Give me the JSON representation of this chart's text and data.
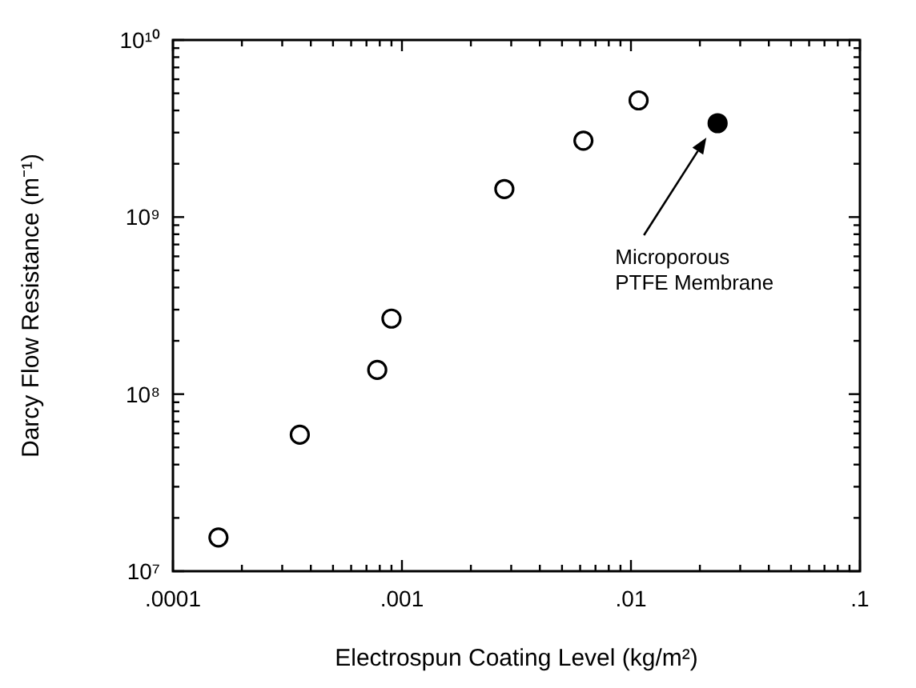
{
  "chart_data": {
    "type": "scatter",
    "xlabel": "Electrospun Coating Level (kg/m²)",
    "ylabel": "Darcy Flow Resistance (m⁻¹)",
    "log": "xy",
    "marker": "circle",
    "grid": false,
    "xlim": [
      0.0001,
      0.1
    ],
    "ylim": [
      10000000.0,
      10000000000.0
    ],
    "xticks": [
      {
        "value": 0.0001,
        "label": ".0001"
      },
      {
        "value": 0.0002,
        "label": null
      },
      {
        "value": 0.0003,
        "label": null
      },
      {
        "value": 0.0004,
        "label": null
      },
      {
        "value": 0.0005,
        "label": null
      },
      {
        "value": 0.0006,
        "label": null
      },
      {
        "value": 0.0007,
        "label": null
      },
      {
        "value": 0.0008,
        "label": null
      },
      {
        "value": 0.0009,
        "label": null
      },
      {
        "value": 0.001,
        "label": ".001"
      },
      {
        "value": 0.002,
        "label": null
      },
      {
        "value": 0.003,
        "label": null
      },
      {
        "value": 0.004,
        "label": null
      },
      {
        "value": 0.005,
        "label": null
      },
      {
        "value": 0.006,
        "label": null
      },
      {
        "value": 0.007,
        "label": null
      },
      {
        "value": 0.008,
        "label": null
      },
      {
        "value": 0.009,
        "label": null
      },
      {
        "value": 0.01,
        "label": ".01"
      },
      {
        "value": 0.02,
        "label": null
      },
      {
        "value": 0.03,
        "label": null
      },
      {
        "value": 0.04,
        "label": null
      },
      {
        "value": 0.05,
        "label": null
      },
      {
        "value": 0.06,
        "label": null
      },
      {
        "value": 0.07,
        "label": null
      },
      {
        "value": 0.08,
        "label": null
      },
      {
        "value": 0.09,
        "label": null
      },
      {
        "value": 0.1,
        "label": ".1"
      }
    ],
    "yticks": [
      {
        "value": 10000000.0,
        "label": "10⁷"
      },
      {
        "value": 20000000.0,
        "label": null
      },
      {
        "value": 30000000.0,
        "label": null
      },
      {
        "value": 40000000.0,
        "label": null
      },
      {
        "value": 50000000.0,
        "label": null
      },
      {
        "value": 60000000.0,
        "label": null
      },
      {
        "value": 70000000.0,
        "label": null
      },
      {
        "value": 80000000.0,
        "label": null
      },
      {
        "value": 90000000.0,
        "label": null
      },
      {
        "value": 100000000.0,
        "label": "10⁸"
      },
      {
        "value": 200000000.0,
        "label": null
      },
      {
        "value": 300000000.0,
        "label": null
      },
      {
        "value": 400000000.0,
        "label": null
      },
      {
        "value": 500000000.0,
        "label": null
      },
      {
        "value": 600000000.0,
        "label": null
      },
      {
        "value": 700000000.0,
        "label": null
      },
      {
        "value": 800000000.0,
        "label": null
      },
      {
        "value": 900000000.0,
        "label": null
      },
      {
        "value": 1000000000.0,
        "label": "10⁹"
      },
      {
        "value": 2000000000.0,
        "label": null
      },
      {
        "value": 3000000000.0,
        "label": null
      },
      {
        "value": 4000000000.0,
        "label": null
      },
      {
        "value": 5000000000.0,
        "label": null
      },
      {
        "value": 6000000000.0,
        "label": null
      },
      {
        "value": 7000000000.0,
        "label": null
      },
      {
        "value": 8000000000.0,
        "label": null
      },
      {
        "value": 9000000000.0,
        "label": null
      },
      {
        "value": 10000000000.0,
        "label": "10¹⁰"
      }
    ],
    "series": [
      {
        "color": "#ffffff",
        "x": [
          0.000158,
          0.000358,
          0.00078,
          0.0009,
          0.0028,
          0.0062,
          0.0108
        ],
        "values": [
          15500000.0,
          59000000.0,
          137000000.0,
          267000000.0,
          1440000000.0,
          2700000000.0,
          4560000000.0
        ]
      },
      {
        "color": "#000000",
        "x": [
          0.0239
        ],
        "values": [
          3390000000.0
        ]
      }
    ],
    "annotations": [
      "Microporous\nPTFE Membrane"
    ]
  }
}
